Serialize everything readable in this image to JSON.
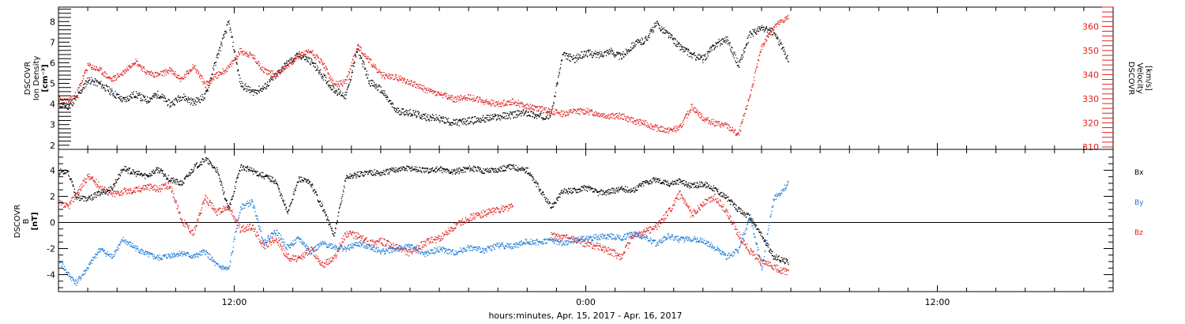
{
  "figure": {
    "xlabel": "hours:minutes, Apr. 15, 2017 - Apr. 16, 2017"
  },
  "chart_data": [
    {
      "type": "scatter",
      "panel": "top",
      "left_axis": {
        "label_lines": [
          "DSCOVR",
          "Ion Density",
          "[cm⁻³]"
        ],
        "range": [
          1.8,
          8.7
        ],
        "ticks": [
          2,
          3,
          4,
          5,
          6,
          7,
          8
        ],
        "color": "#000000"
      },
      "right_axis": {
        "label_lines": [
          "DSCOVR",
          "Velocity",
          "[km/s]"
        ],
        "range": [
          309,
          368
        ],
        "ticks": [
          310,
          320,
          330,
          340,
          350,
          360
        ],
        "color": "#e02020"
      },
      "x_range_hours": [
        6.0,
        42.0
      ],
      "x_ticks": [
        {
          "hour": 12,
          "label": "12:00"
        },
        {
          "hour": 24,
          "label": "0:00"
        },
        {
          "hour": 36,
          "label": "12:00"
        }
      ],
      "series": [
        {
          "color": "#000000",
          "axis": "left",
          "x": [
            6.0,
            6.3,
            6.6,
            7.0,
            7.4,
            7.8,
            8.2,
            8.6,
            9.0,
            9.4,
            9.8,
            10.2,
            10.6,
            11.0,
            11.4,
            11.8,
            12.2,
            12.6,
            13.0,
            13.4,
            13.8,
            14.2,
            14.6,
            15.0,
            15.4,
            15.8,
            16.2,
            16.6,
            17.0,
            17.5,
            18.0,
            18.5,
            19.0,
            19.5,
            20.0,
            20.5,
            21.0,
            21.5,
            22.0,
            22.4,
            22.8,
            23.2,
            23.6,
            24.0,
            24.4,
            24.8,
            25.2,
            25.6,
            26.0,
            26.4,
            26.8,
            27.2,
            27.6,
            28.0,
            28.4,
            28.8,
            29.2,
            29.6,
            30.0,
            30.4,
            30.9
          ],
          "y": [
            4.0,
            3.9,
            4.3,
            5.2,
            5.0,
            4.6,
            4.2,
            4.5,
            4.2,
            4.5,
            4.0,
            4.4,
            4.1,
            4.4,
            6.3,
            8.0,
            5.0,
            4.6,
            4.8,
            5.4,
            6.0,
            6.4,
            6.1,
            5.4,
            4.7,
            4.4,
            6.7,
            5.1,
            4.7,
            3.7,
            3.6,
            3.4,
            3.3,
            3.1,
            3.2,
            3.3,
            3.4,
            3.5,
            3.6,
            3.4,
            3.5,
            6.4,
            6.2,
            6.5,
            6.4,
            6.6,
            6.3,
            6.9,
            7.1,
            7.9,
            7.4,
            6.8,
            6.4,
            6.2,
            6.9,
            7.2,
            5.9,
            7.4,
            7.7,
            7.5,
            6.2
          ]
        },
        {
          "color": "#e02020",
          "axis": "right",
          "x": [
            6.0,
            6.3,
            6.6,
            7.0,
            7.4,
            7.8,
            8.2,
            8.6,
            9.0,
            9.4,
            9.8,
            10.2,
            10.6,
            11.0,
            11.4,
            11.8,
            12.2,
            12.6,
            13.0,
            13.4,
            13.8,
            14.2,
            14.6,
            15.0,
            15.4,
            15.8,
            16.2,
            16.6,
            17.0,
            17.5,
            18.0,
            18.5,
            19.0,
            19.5,
            20.0,
            20.5,
            21.0,
            21.5,
            22.0,
            22.4,
            22.8,
            23.2,
            23.6,
            24.0,
            24.4,
            24.8,
            25.2,
            25.6,
            26.0,
            26.4,
            26.8,
            27.2,
            27.6,
            28.0,
            28.4,
            28.8,
            29.2,
            29.6,
            30.0,
            30.4,
            30.9
          ],
          "y": [
            330,
            329,
            332,
            344,
            342,
            338,
            341,
            346,
            341,
            340,
            342,
            338,
            344,
            336,
            340,
            343,
            350,
            348,
            342,
            340,
            344,
            348,
            350,
            345,
            336,
            337,
            352,
            346,
            340,
            339,
            337,
            334,
            332,
            330,
            331,
            329,
            328,
            329,
            327,
            326,
            325,
            324,
            325,
            325,
            324,
            323,
            323,
            321,
            320,
            318,
            317,
            318,
            327,
            322,
            320,
            319,
            315,
            332,
            352,
            360,
            364
          ]
        }
      ]
    },
    {
      "type": "scatter",
      "panel": "bottom",
      "y_axis": {
        "label_lines": [
          "DSCOVR",
          "B",
          "[nT]"
        ],
        "range": [
          -5.3,
          5.6
        ],
        "ticks": [
          -4,
          -2,
          0,
          2,
          4
        ],
        "zero_line": true
      },
      "x_range_hours": [
        6.0,
        42.0
      ],
      "x_ticks": [
        {
          "hour": 12,
          "label": "12:00"
        },
        {
          "hour": 24,
          "label": "0:00"
        },
        {
          "hour": 36,
          "label": "12:00"
        }
      ],
      "legend": [
        "Bx",
        "By",
        "Bz"
      ],
      "legend_placement": "right",
      "series": [
        {
          "name": "Bx",
          "color": "#000000",
          "x": [
            6.0,
            6.3,
            6.6,
            7.0,
            7.4,
            7.8,
            8.2,
            8.6,
            9.0,
            9.4,
            9.8,
            10.2,
            10.6,
            11.0,
            11.4,
            11.8,
            12.2,
            12.6,
            13.0,
            13.4,
            13.8,
            14.2,
            14.6,
            15.0,
            15.4,
            15.8,
            16.2,
            16.6,
            17.0,
            17.5,
            18.0,
            18.5,
            19.0,
            19.5,
            20.0,
            20.5,
            21.0,
            21.5,
            22.0,
            22.4,
            22.8,
            23.2,
            23.6,
            24.0,
            24.4,
            24.8,
            25.2,
            25.6,
            26.0,
            26.4,
            26.8,
            27.2,
            27.6,
            28.0,
            28.4,
            28.8,
            29.2,
            29.6,
            30.0,
            30.4,
            30.9
          ],
          "y": [
            3.9,
            4.0,
            2.0,
            1.8,
            2.3,
            2.6,
            4.2,
            3.8,
            3.6,
            4.1,
            3.3,
            3.0,
            4.2,
            4.9,
            4.0,
            1.0,
            4.3,
            4.0,
            3.6,
            3.2,
            0.8,
            3.4,
            3.0,
            1.2,
            -1.0,
            3.5,
            3.7,
            3.9,
            3.8,
            4.1,
            4.2,
            4.0,
            4.1,
            3.9,
            4.2,
            4.0,
            4.1,
            4.3,
            4.0,
            2.6,
            1.2,
            2.4,
            2.5,
            2.7,
            2.3,
            2.4,
            2.6,
            2.5,
            3.1,
            3.3,
            3.0,
            3.2,
            2.8,
            3.0,
            2.6,
            1.9,
            1.0,
            0.4,
            -1.0,
            -2.6,
            -3.0
          ]
        },
        {
          "name": "By",
          "color": "#1a7ad4",
          "x": [
            6.0,
            6.3,
            6.6,
            7.0,
            7.4,
            7.8,
            8.2,
            8.6,
            9.0,
            9.4,
            9.8,
            10.2,
            10.6,
            11.0,
            11.4,
            11.8,
            12.2,
            12.6,
            13.0,
            13.4,
            13.8,
            14.2,
            14.6,
            15.0,
            15.4,
            15.8,
            16.2,
            16.6,
            17.0,
            17.5,
            18.0,
            18.5,
            19.0,
            19.5,
            20.0,
            20.5,
            21.0,
            21.5,
            22.0,
            22.4,
            22.8,
            23.2,
            23.6,
            24.0,
            24.4,
            24.8,
            25.2,
            25.6,
            26.0,
            26.4,
            26.8,
            27.2,
            27.6,
            28.0,
            28.4,
            28.8,
            29.2,
            29.6,
            30.0,
            30.4,
            30.9
          ],
          "y": [
            -2.8,
            -3.9,
            -4.6,
            -3.4,
            -2.0,
            -2.6,
            -1.3,
            -1.9,
            -2.4,
            -2.7,
            -2.5,
            -2.3,
            -2.6,
            -2.2,
            -3.3,
            -3.6,
            1.2,
            1.6,
            -1.5,
            -0.6,
            -1.9,
            -1.2,
            -2.2,
            -1.6,
            -1.8,
            -2.0,
            -1.6,
            -1.8,
            -2.2,
            -2.0,
            -1.8,
            -2.4,
            -2.0,
            -2.3,
            -1.9,
            -2.1,
            -1.7,
            -1.8,
            -1.4,
            -1.5,
            -1.3,
            -1.6,
            -1.3,
            -1.2,
            -1.1,
            -1.0,
            -1.2,
            -0.8,
            -1.1,
            -1.6,
            -1.0,
            -1.3,
            -1.2,
            -1.4,
            -1.9,
            -2.6,
            -2.1,
            0.5,
            -3.5,
            1.8,
            3.0
          ]
        },
        {
          "name": "Bz",
          "color": "#e02020",
          "x": [
            6.0,
            6.3,
            6.6,
            7.0,
            7.4,
            7.8,
            8.2,
            8.6,
            9.0,
            9.4,
            9.8,
            10.2,
            10.6,
            11.0,
            11.4,
            11.8,
            12.2,
            12.6,
            13.0,
            13.4,
            13.8,
            14.2,
            14.6,
            15.0,
            15.4,
            15.8,
            16.2,
            16.6,
            17.0,
            17.5,
            18.0,
            18.5,
            19.0,
            19.5,
            20.0,
            20.5,
            21.0,
            21.5,
            22.0,
            22.4,
            22.8,
            23.2,
            23.6,
            24.0,
            24.4,
            24.8,
            25.2,
            25.6,
            26.0,
            26.4,
            26.8,
            27.2,
            27.6,
            28.0,
            28.4,
            28.8,
            29.2,
            29.6,
            30.0,
            30.4,
            30.9
          ],
          "y": [
            1.5,
            1.2,
            2.2,
            3.6,
            2.8,
            2.2,
            2.4,
            2.5,
            2.8,
            2.6,
            2.9,
            0.2,
            -0.8,
            1.9,
            0.8,
            1.2,
            -0.5,
            -0.3,
            -1.8,
            -1.2,
            -2.6,
            -2.8,
            -2.0,
            -3.2,
            -2.7,
            -0.8,
            -1.0,
            -1.5,
            -1.4,
            -1.9,
            -2.3,
            -1.5,
            -1.2,
            -0.3,
            0.4,
            0.7,
            1.0,
            1.3,
            null,
            null,
            -1.0,
            -1.1,
            -1.3,
            -1.6,
            -1.8,
            -2.2,
            -2.6,
            -1.0,
            -0.7,
            -0.3,
            0.8,
            2.2,
            0.6,
            1.5,
            2.0,
            0.8,
            -0.9,
            -2.2,
            -3.0,
            -3.4,
            -3.8
          ]
        }
      ]
    }
  ]
}
